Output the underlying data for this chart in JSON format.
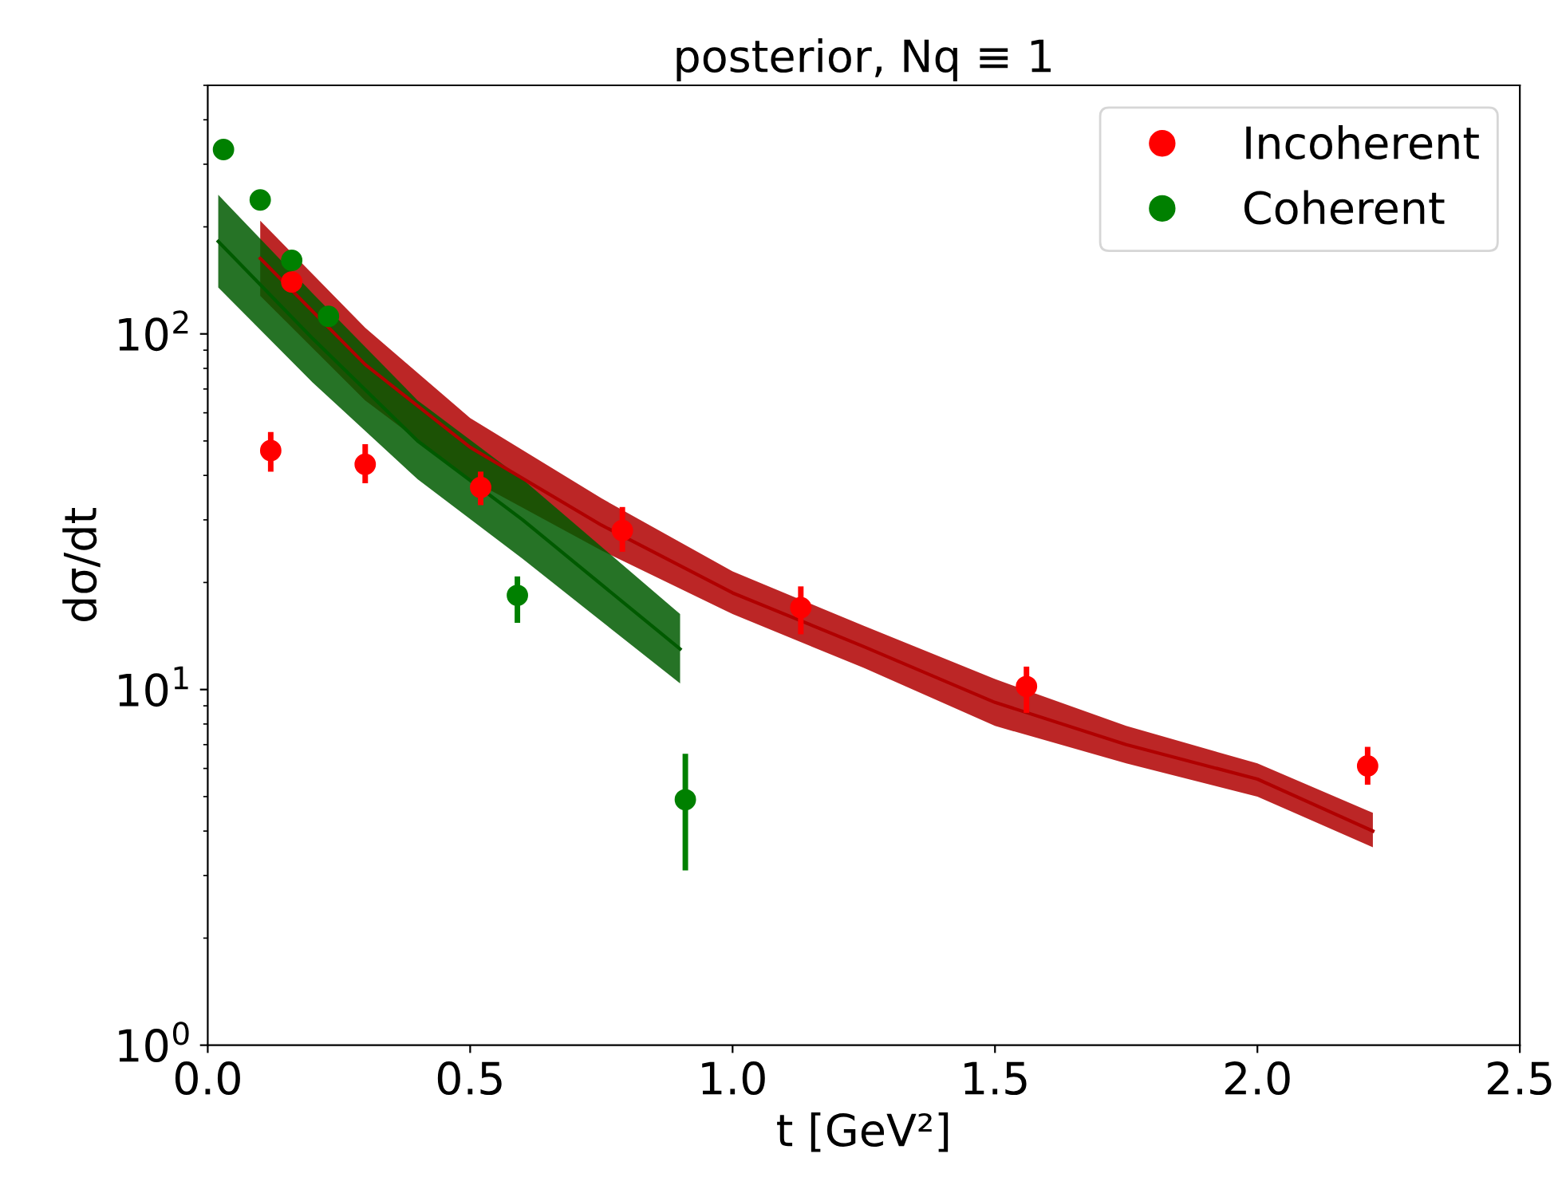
{
  "chart_data": {
    "type": "scatter",
    "title": "posterior, Nq ≡ 1",
    "xlabel": "t [GeV²]",
    "ylabel": "dσ/dt",
    "xlim": [
      0.0,
      2.5
    ],
    "xticks": [
      {
        "value": 0.0,
        "label": "0.0"
      },
      {
        "value": 0.5,
        "label": "0.5"
      },
      {
        "value": 1.0,
        "label": "1.0"
      },
      {
        "value": 1.5,
        "label": "1.5"
      },
      {
        "value": 2.0,
        "label": "2.0"
      },
      {
        "value": 2.5,
        "label": "2.5"
      }
    ],
    "log": "y",
    "ylim": [
      1,
      500
    ],
    "yticks": [
      {
        "value": 1,
        "label": "10$^{0}$"
      },
      {
        "value": 10,
        "label": "10$^{1}$"
      },
      {
        "value": 100,
        "label": "10$^{2}$"
      }
    ],
    "grid": false,
    "legend": "top right",
    "series": [
      {
        "type": "line",
        "color": "#b00000",
        "x": [
          0.1,
          0.3,
          0.5,
          0.75,
          1.0,
          1.25,
          1.5,
          1.75,
          2.0,
          2.22
        ],
        "values": [
          163,
          82,
          48,
          29,
          18.7,
          13.2,
          9.2,
          7.0,
          5.6,
          4.0
        ],
        "lower": [
          128,
          65,
          39,
          24.6,
          16.3,
          11.5,
          7.9,
          6.2,
          5.0,
          3.6
        ],
        "upper": [
          208,
          104,
          58,
          34.5,
          21.5,
          15.1,
          10.7,
          7.9,
          6.2,
          4.5
        ]
      },
      {
        "type": "line",
        "color": "#005a00",
        "x": [
          0.02,
          0.2,
          0.4,
          0.6,
          0.9
        ],
        "values": [
          182,
          97,
          50,
          30,
          13
        ],
        "lower": [
          135,
          73,
          39,
          23.3,
          10.4
        ],
        "upper": [
          246,
          130,
          65,
          39,
          16.3
        ]
      },
      {
        "type": "scatter",
        "name": "Incoherent",
        "color": "#ff0000",
        "marker": "circle",
        "x": [
          0.12,
          0.16,
          0.3,
          0.52,
          0.79,
          1.13,
          1.56,
          2.21
        ],
        "values": [
          47,
          140,
          43,
          37,
          28,
          17,
          10.2,
          6.1
        ],
        "errors": [
          [
            41,
            53
          ],
          null,
          [
            38,
            49
          ],
          [
            33,
            41
          ],
          [
            24.4,
            32.6
          ],
          [
            14.3,
            19.5
          ],
          [
            8.6,
            11.6
          ],
          [
            5.4,
            6.9
          ]
        ]
      },
      {
        "type": "scatter",
        "name": "Coherent",
        "color": "#008000",
        "marker": "circle",
        "x": [
          0.03,
          0.1,
          0.16,
          0.23,
          0.59,
          0.91
        ],
        "values": [
          330,
          238,
          161,
          112,
          18.4,
          4.9
        ],
        "errors": [
          null,
          null,
          null,
          null,
          [
            15.4,
            20.8
          ],
          [
            3.1,
            6.6
          ]
        ]
      }
    ]
  }
}
